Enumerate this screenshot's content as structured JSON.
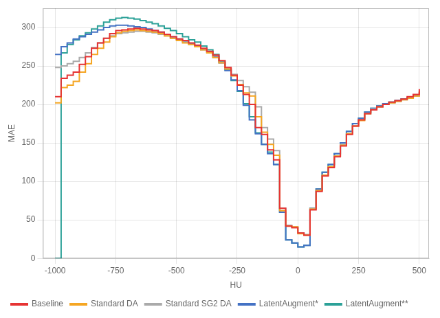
{
  "chart_data": {
    "type": "line",
    "line_style": "step",
    "xlabel": "HU",
    "ylabel": "MAE",
    "xlim": [
      -1050,
      540
    ],
    "ylim": [
      0,
      325
    ],
    "xticks": [
      -1000,
      -750,
      -500,
      -250,
      0,
      250,
      500
    ],
    "yticks": [
      0,
      50,
      100,
      150,
      200,
      250,
      300
    ],
    "grid": true,
    "legend": "lower left",
    "x": [
      -1000,
      -975,
      -950,
      -925,
      -900,
      -875,
      -850,
      -825,
      -800,
      -775,
      -750,
      -725,
      -700,
      -675,
      -650,
      -625,
      -600,
      -575,
      -550,
      -525,
      -500,
      -475,
      -450,
      -425,
      -400,
      -375,
      -350,
      -325,
      -300,
      -275,
      -250,
      -225,
      -200,
      -175,
      -150,
      -125,
      -100,
      -75,
      -50,
      -25,
      0,
      25,
      50,
      75,
      100,
      125,
      150,
      175,
      200,
      225,
      250,
      275,
      300,
      325,
      350,
      375,
      400,
      425,
      450,
      475,
      500
    ],
    "series": [
      {
        "name": "Baseline",
        "color": "#e63333",
        "values": [
          210,
          234,
          238,
          242,
          252,
          262,
          273,
          280,
          286,
          292,
          296,
          297,
          298,
          299,
          298,
          297,
          296,
          294,
          291,
          288,
          285,
          283,
          280,
          277,
          273,
          269,
          264,
          257,
          248,
          238,
          225,
          213,
          200,
          170,
          161,
          141,
          128,
          65,
          42,
          40,
          33,
          30,
          63,
          87,
          107,
          118,
          132,
          146,
          161,
          172,
          180,
          188,
          193,
          197,
          200,
          203,
          205,
          207,
          210,
          213,
          220
        ]
      },
      {
        "name": "Standard DA",
        "color": "#f5a623",
        "values": [
          202,
          222,
          225,
          230,
          242,
          253,
          265,
          273,
          281,
          288,
          293,
          295,
          296,
          297,
          296,
          295,
          294,
          292,
          289,
          286,
          283,
          280,
          278,
          275,
          271,
          267,
          261,
          254,
          246,
          237,
          226,
          215,
          211,
          184,
          164,
          148,
          134,
          62,
          42,
          41,
          32,
          30,
          64,
          88,
          108,
          119,
          133,
          147,
          162,
          172,
          179,
          188,
          193,
          197,
          200,
          202,
          204,
          206,
          208,
          211,
          217
        ]
      },
      {
        "name": "Standard SG2 DA",
        "color": "#aaaaaa",
        "values": [
          248,
          250,
          253,
          256,
          261,
          267,
          274,
          280,
          286,
          289,
          292,
          293,
          294,
          295,
          295,
          294,
          293,
          291,
          289,
          286,
          284,
          281,
          278,
          275,
          271,
          267,
          261,
          255,
          247,
          239,
          231,
          223,
          216,
          197,
          170,
          155,
          140,
          65,
          43,
          41,
          33,
          31,
          65,
          88,
          108,
          119,
          133,
          148,
          162,
          172,
          180,
          188,
          194,
          197,
          200,
          202,
          204,
          206,
          208,
          211,
          217
        ]
      },
      {
        "name": "LatentAugment*",
        "color": "#4472c4",
        "values": [
          265,
          275,
          280,
          285,
          288,
          291,
          294,
          297,
          300,
          302,
          303,
          303,
          302,
          301,
          300,
          298,
          296,
          294,
          291,
          288,
          285,
          282,
          279,
          276,
          272,
          268,
          262,
          254,
          244,
          232,
          218,
          199,
          180,
          162,
          148,
          136,
          122,
          60,
          24,
          20,
          15,
          17,
          65,
          90,
          112,
          122,
          136,
          150,
          165,
          175,
          182,
          190,
          195,
          198,
          201,
          203,
          205,
          207,
          209,
          212,
          216
        ]
      },
      {
        "name": "LatentAugment**",
        "color": "#2ca198",
        "values": [
          0,
          267,
          278,
          284,
          289,
          293,
          298,
          302,
          307,
          310,
          312,
          313,
          312,
          311,
          309,
          307,
          305,
          302,
          299,
          296,
          292,
          288,
          284,
          281,
          276,
          271,
          265,
          256,
          245,
          231,
          217,
          201,
          184,
          163,
          148,
          138,
          122,
          60,
          24,
          20,
          15,
          17,
          65,
          90,
          112,
          122,
          136,
          150,
          165,
          175,
          182,
          190,
          195,
          198,
          201,
          203,
          205,
          207,
          209,
          212,
          216
        ]
      }
    ]
  }
}
